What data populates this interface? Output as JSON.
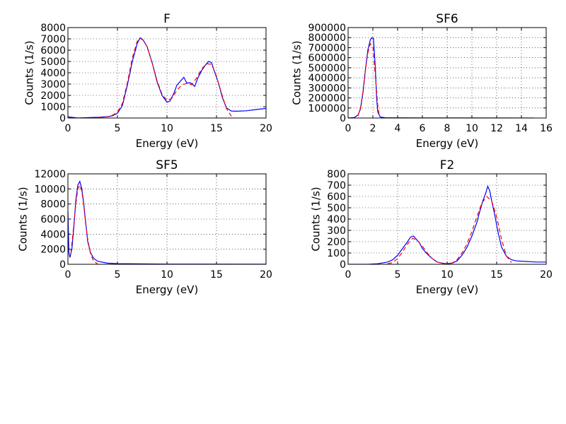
{
  "chart_data": [
    {
      "type": "line",
      "title": "F",
      "xlabel": "Energy (eV)",
      "ylabel": "Counts (1/s)",
      "xlim": [
        0,
        20
      ],
      "ylim": [
        0,
        8000
      ],
      "xticks": [
        0,
        5,
        10,
        15,
        20
      ],
      "yticks": [
        0,
        1000,
        2000,
        3000,
        4000,
        5000,
        6000,
        7000,
        8000
      ],
      "grid": true,
      "series": [
        {
          "color": "#0000ff",
          "style": "solid",
          "x": [
            0,
            1,
            2,
            3,
            4,
            4.5,
            5,
            5.5,
            6,
            6.5,
            7,
            7.3,
            7.6,
            8,
            8.5,
            9,
            9.5,
            10,
            10.3,
            10.7,
            11,
            11.4,
            11.7,
            12,
            12.4,
            12.8,
            13.1,
            13.5,
            13.9,
            14.2,
            14.5,
            14.8,
            15.2,
            15.6,
            16,
            16.5,
            17,
            18,
            19,
            20
          ],
          "y": [
            100,
            0,
            30,
            60,
            120,
            200,
            420,
            1100,
            2900,
            5000,
            6600,
            7100,
            6900,
            6300,
            4900,
            3200,
            2000,
            1400,
            1500,
            2200,
            2900,
            3300,
            3600,
            3100,
            3100,
            2800,
            3500,
            4200,
            4700,
            5000,
            4900,
            4100,
            3100,
            1800,
            900,
            620,
            600,
            640,
            750,
            850
          ]
        },
        {
          "color": "#ff0000",
          "style": "dashed",
          "x": [
            3,
            4,
            4.5,
            5,
            5.5,
            6,
            6.5,
            7,
            7.5,
            8,
            8.5,
            9,
            9.5,
            10,
            10.5,
            11,
            11.5,
            12,
            12.5,
            13,
            13.5,
            14,
            14.5,
            15,
            15.5,
            16,
            16.5
          ],
          "y": [
            40,
            110,
            250,
            520,
            1300,
            3100,
            5300,
            6800,
            7000,
            6300,
            4900,
            3300,
            2100,
            1550,
            1750,
            2450,
            2950,
            3050,
            2950,
            3550,
            4350,
            4800,
            4750,
            3700,
            2200,
            850,
            150
          ]
        }
      ]
    },
    {
      "type": "line",
      "title": "SF6",
      "xlabel": "Energy (eV)",
      "ylabel": "Counts (1/s)",
      "xlim": [
        0,
        16
      ],
      "ylim": [
        0,
        900000
      ],
      "xticks": [
        0,
        2,
        4,
        6,
        8,
        10,
        12,
        14,
        16
      ],
      "yticks": [
        0,
        100000,
        200000,
        300000,
        400000,
        500000,
        600000,
        700000,
        800000,
        900000
      ],
      "grid": true,
      "series": [
        {
          "color": "#0000ff",
          "style": "solid",
          "x": [
            0,
            0.5,
            0.8,
            1.0,
            1.2,
            1.4,
            1.6,
            1.8,
            1.95,
            2.05,
            2.2,
            2.3,
            2.4,
            2.6,
            3,
            6,
            10,
            15
          ],
          "y": [
            0,
            5000,
            30000,
            90000,
            250000,
            480000,
            680000,
            780000,
            800000,
            790000,
            500000,
            200000,
            60000,
            10000,
            3000,
            1000,
            500,
            300
          ]
        },
        {
          "color": "#ff0000",
          "style": "dashed",
          "x": [
            0.8,
            1.0,
            1.2,
            1.4,
            1.6,
            1.8,
            2.0,
            2.2,
            2.4,
            2.5
          ],
          "y": [
            20000,
            100000,
            260000,
            480000,
            650000,
            740000,
            720000,
            420000,
            120000,
            40000
          ]
        }
      ]
    },
    {
      "type": "line",
      "title": "SF5",
      "xlabel": "Energy (eV)",
      "ylabel": "Counts (1/s)",
      "xlim": [
        0,
        20
      ],
      "ylim": [
        0,
        12000
      ],
      "xticks": [
        0,
        5,
        10,
        15,
        20
      ],
      "yticks": [
        0,
        2000,
        4000,
        6000,
        8000,
        10000,
        12000
      ],
      "grid": true,
      "series": [
        {
          "color": "#0000ff",
          "style": "solid",
          "x": [
            0,
            0.1,
            0.2,
            0.4,
            0.6,
            0.8,
            1.0,
            1.2,
            1.4,
            1.6,
            1.8,
            2.0,
            2.3,
            2.6,
            3,
            4,
            5,
            10,
            20
          ],
          "y": [
            7000,
            1500,
            900,
            2000,
            5000,
            8500,
            10500,
            11000,
            10000,
            8000,
            5500,
            3000,
            1500,
            800,
            400,
            150,
            80,
            30,
            10
          ]
        },
        {
          "color": "#ff0000",
          "style": "dashed",
          "x": [
            0.3,
            0.5,
            0.8,
            1.0,
            1.2,
            1.4,
            1.6,
            1.8,
            2.0,
            2.3,
            2.6,
            3.0
          ],
          "y": [
            1500,
            4000,
            8000,
            10000,
            10500,
            9700,
            7800,
            5300,
            3300,
            1300,
            400,
            50
          ]
        }
      ]
    },
    {
      "type": "line",
      "title": "F2",
      "xlabel": "Energy (eV)",
      "ylabel": "Counts (1/s)",
      "xlim": [
        0,
        20
      ],
      "ylim": [
        0,
        800
      ],
      "xticks": [
        0,
        5,
        10,
        15,
        20
      ],
      "yticks": [
        0,
        100,
        200,
        300,
        400,
        500,
        600,
        700,
        800
      ],
      "grid": true,
      "series": [
        {
          "color": "#0000ff",
          "style": "solid",
          "x": [
            0,
            1,
            2,
            3,
            4,
            4.5,
            5,
            5.5,
            6,
            6.3,
            6.6,
            6.9,
            7.2,
            7.5,
            8,
            8.5,
            9,
            9.5,
            10,
            10.5,
            11,
            11.5,
            12,
            12.5,
            13,
            13.3,
            13.6,
            13.9,
            14.1,
            14.3,
            14.5,
            14.8,
            15.1,
            15.5,
            16,
            16.5,
            17,
            18,
            19,
            20
          ],
          "y": [
            0,
            0,
            0,
            5,
            20,
            40,
            80,
            140,
            200,
            240,
            250,
            220,
            190,
            140,
            90,
            50,
            20,
            10,
            5,
            10,
            30,
            80,
            150,
            250,
            370,
            470,
            560,
            630,
            690,
            650,
            560,
            440,
            300,
            150,
            70,
            40,
            30,
            25,
            20,
            20
          ]
        },
        {
          "color": "#ff0000",
          "style": "dashed",
          "x": [
            4,
            4.5,
            5,
            5.5,
            6,
            6.5,
            7,
            7.5,
            8,
            8.5,
            9,
            9.5,
            10,
            10.5,
            11,
            11.5,
            12,
            12.5,
            13,
            13.5,
            14,
            14.5,
            15,
            15.5,
            16,
            16.5
          ],
          "y": [
            5,
            15,
            50,
            110,
            180,
            230,
            210,
            160,
            100,
            50,
            20,
            8,
            5,
            12,
            40,
            100,
            180,
            290,
            420,
            540,
            600,
            560,
            420,
            220,
            70,
            15
          ]
        }
      ]
    }
  ]
}
